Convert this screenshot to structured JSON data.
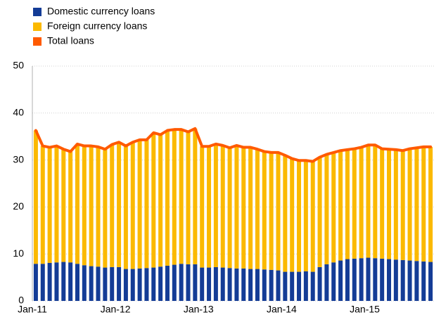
{
  "chart_data": {
    "type": "stacked_bar_line",
    "categories": [
      "Jan-11",
      null,
      null,
      null,
      null,
      null,
      null,
      null,
      null,
      null,
      null,
      null,
      "Jan-12",
      null,
      null,
      null,
      null,
      null,
      null,
      null,
      null,
      null,
      null,
      null,
      "Jan-13",
      null,
      null,
      null,
      null,
      null,
      null,
      null,
      null,
      null,
      null,
      null,
      "Jan-14",
      null,
      null,
      null,
      null,
      null,
      null,
      null,
      null,
      null,
      null,
      null,
      "Jan-15",
      null,
      null,
      null,
      null,
      null,
      null,
      null,
      null,
      null
    ],
    "series": [
      {
        "name": "Domestic currency loans",
        "color": "#143c96",
        "kind": "bar",
        "values": [
          7.9,
          7.9,
          8.1,
          8.2,
          8.3,
          8.2,
          7.9,
          7.6,
          7.4,
          7.3,
          7.1,
          7.2,
          7.2,
          6.8,
          6.8,
          6.9,
          7.0,
          7.1,
          7.3,
          7.5,
          7.7,
          7.9,
          7.8,
          7.8,
          7.1,
          7.1,
          7.2,
          7.1,
          7.0,
          6.9,
          6.9,
          6.8,
          6.8,
          6.7,
          6.6,
          6.5,
          6.2,
          6.2,
          6.2,
          6.3,
          6.2,
          7.2,
          7.8,
          8.2,
          8.6,
          8.9,
          9.0,
          9.1,
          9.2,
          9.1,
          9.0,
          8.9,
          8.8,
          8.7,
          8.6,
          8.5,
          8.4,
          8.3
        ]
      },
      {
        "name": "Foreign currency loans",
        "color": "#fbb900",
        "kind": "bar",
        "values": [
          28.4,
          25.1,
          24.6,
          24.8,
          24.0,
          23.6,
          25.5,
          25.4,
          25.6,
          25.5,
          25.2,
          26.1,
          26.6,
          26.2,
          27.0,
          27.4,
          27.3,
          28.7,
          28.1,
          28.8,
          28.8,
          28.6,
          28.2,
          28.9,
          25.8,
          25.8,
          26.2,
          26.0,
          25.6,
          26.2,
          25.8,
          25.9,
          25.5,
          25.1,
          25.0,
          25.1,
          24.8,
          24.1,
          23.7,
          23.6,
          23.5,
          23.4,
          23.4,
          23.4,
          23.4,
          23.3,
          23.4,
          23.6,
          24.0,
          24.1,
          23.4,
          23.4,
          23.4,
          23.3,
          23.8,
          24.1,
          24.4,
          24.5
        ]
      },
      {
        "name": "Total loans",
        "color": "#ff5a00",
        "kind": "line",
        "values": [
          36.3,
          33.0,
          32.7,
          33.0,
          32.3,
          31.8,
          33.4,
          33.0,
          33.0,
          32.8,
          32.3,
          33.3,
          33.8,
          33.0,
          33.8,
          34.3,
          34.3,
          35.8,
          35.4,
          36.3,
          36.5,
          36.5,
          36.0,
          36.7,
          32.9,
          32.9,
          33.4,
          33.1,
          32.6,
          33.1,
          32.7,
          32.7,
          32.3,
          31.8,
          31.6,
          31.6,
          31.0,
          30.3,
          29.9,
          29.9,
          29.7,
          30.6,
          31.2,
          31.6,
          32.0,
          32.2,
          32.4,
          32.7,
          33.2,
          33.2,
          32.4,
          32.3,
          32.2,
          32.0,
          32.4,
          32.6,
          32.8,
          32.8
        ]
      }
    ],
    "ylim": [
      0,
      50
    ],
    "yticks": [
      0,
      10,
      20,
      30,
      40,
      50
    ],
    "grid": true,
    "legend": "top-left"
  }
}
